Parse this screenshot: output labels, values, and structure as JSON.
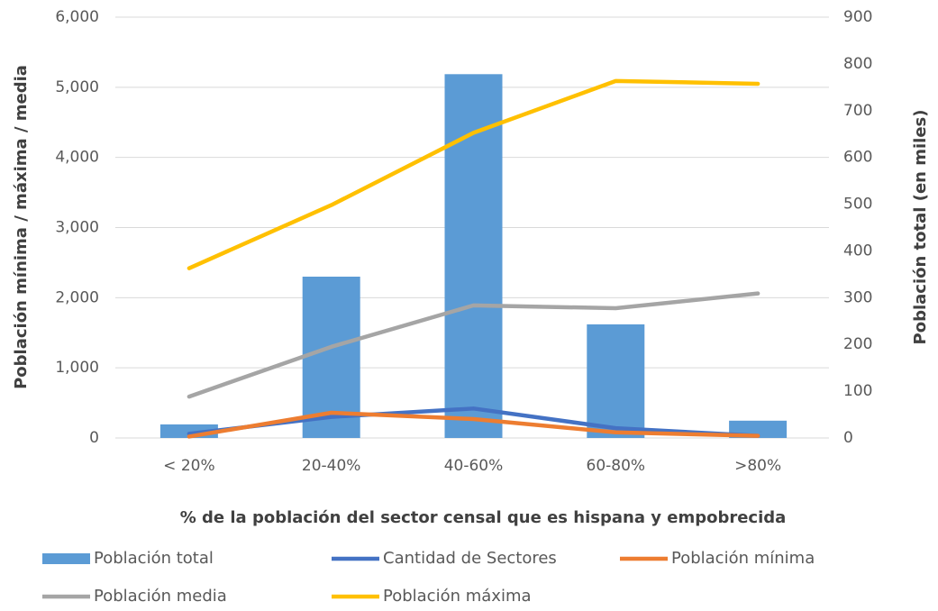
{
  "chart_data": {
    "type": "bar",
    "categories": [
      "< 20%",
      "20-40%",
      "40-60%",
      "60-80%",
      ">80%"
    ],
    "x_label": "% de la población del sector censal que es hispana y empobrecida",
    "y_label": "Población mínima / máxima / media",
    "y2_label": "Población total (en miles)",
    "ylim": [
      0,
      6000
    ],
    "yticks": [
      0,
      {
        "value": 1000,
        "label": "1,000"
      },
      {
        "value": 2000,
        "label": "2,000"
      },
      {
        "value": 3000,
        "label": "3,000"
      },
      {
        "value": 4000,
        "label": "4,000"
      },
      {
        "value": 5000,
        "label": "5,000"
      },
      {
        "value": 6000,
        "label": "6,000"
      }
    ],
    "y2lim": [
      0,
      900
    ],
    "y2ticks": [
      0,
      100,
      200,
      300,
      400,
      500,
      600,
      700,
      800,
      900
    ],
    "grid": true,
    "legend": "bottom",
    "series": [
      {
        "name": "Población total",
        "type": "bar",
        "axis": "y2",
        "color": "#5b9bd5",
        "values": [
          29,
          345,
          778,
          243,
          37
        ]
      },
      {
        "name": "Cantidad de Sectores",
        "type": "line",
        "color": "#4472c4",
        "values": [
          60,
          300,
          420,
          140,
          30
        ]
      },
      {
        "name": "Población mínima",
        "type": "line",
        "color": "#ed7d31",
        "values": [
          20,
          360,
          270,
          80,
          30
        ]
      },
      {
        "name": "Población media",
        "type": "line",
        "color": "#a5a5a5",
        "values": [
          590,
          1300,
          1890,
          1850,
          2060
        ]
      },
      {
        "name": "Población máxima",
        "type": "line",
        "color": "#ffc000",
        "values": [
          2420,
          3320,
          4350,
          5090,
          5050
        ]
      }
    ]
  }
}
